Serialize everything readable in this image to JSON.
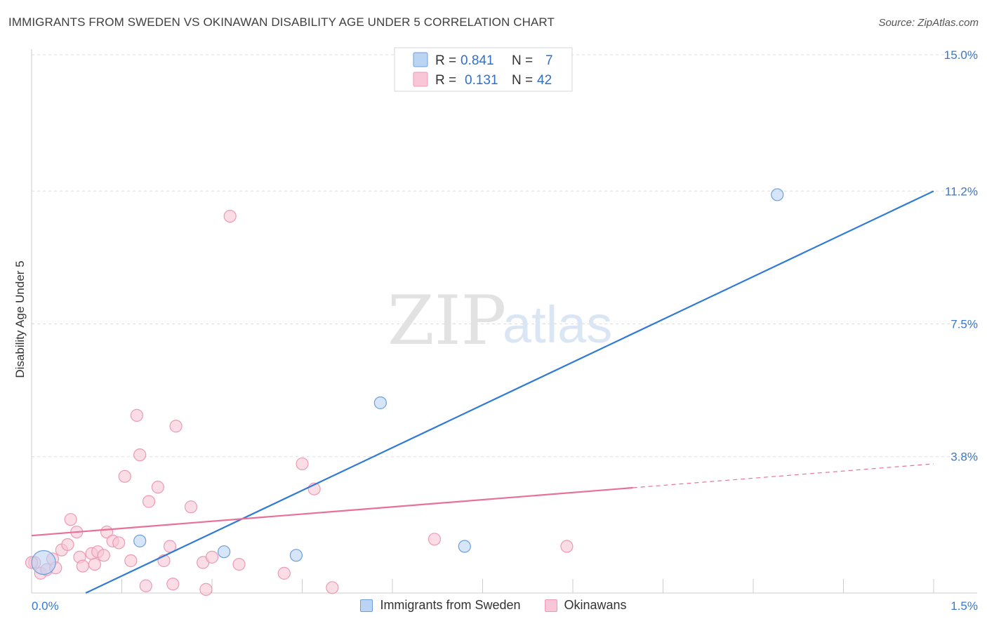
{
  "title": "IMMIGRANTS FROM SWEDEN VS OKINAWAN DISABILITY AGE UNDER 5 CORRELATION CHART",
  "source": "Source: ZipAtlas.com",
  "watermark": {
    "zip": "ZIP",
    "atlas": "atlas"
  },
  "colors": {
    "blue": "#2f7ad6",
    "blue_fill": "#bcd4f3",
    "blue_stroke": "#6c9fdc",
    "pink": "#e8709a",
    "pink_fill": "#f8c6d6",
    "pink_stroke": "#ec9ab6",
    "grid": "#dddddd",
    "tick_label": "#3a78c9"
  },
  "legend": {
    "rows": [
      {
        "r_label": "R =",
        "r_value": "0.841",
        "n_label": "N =",
        "n_value": "7",
        "series": "Immigrants from Sweden"
      },
      {
        "r_label": "R =",
        "r_value": "0.131",
        "n_label": "N =",
        "n_value": "42",
        "series": "Okinawans"
      }
    ]
  },
  "bottom_legend": {
    "sweden": "Immigrants from Sweden",
    "okinawans": "Okinawans"
  },
  "chart_data": {
    "type": "scatter",
    "title": "IMMIGRANTS FROM SWEDEN VS OKINAWAN DISABILITY AGE UNDER 5 CORRELATION CHART",
    "xlabel": "",
    "ylabel": "Disability Age Under 5",
    "xlim": [
      0.0,
      1.5
    ],
    "ylim": [
      0.0,
      15.0
    ],
    "x_tick_labels": [
      "0.0%",
      "1.5%"
    ],
    "y_ticks": [
      3.8,
      7.5,
      11.2,
      15.0
    ],
    "y_tick_labels": [
      "3.8%",
      "7.5%",
      "11.2%",
      "15.0%"
    ],
    "series": [
      {
        "name": "Immigrants from Sweden",
        "color": "#2f7ad6",
        "points": [
          {
            "x": 0.02,
            "y": 0.85,
            "big": true
          },
          {
            "x": 0.18,
            "y": 1.45
          },
          {
            "x": 0.32,
            "y": 1.15
          },
          {
            "x": 0.44,
            "y": 1.05
          },
          {
            "x": 0.58,
            "y": 5.3
          },
          {
            "x": 0.72,
            "y": 1.3
          },
          {
            "x": 1.24,
            "y": 11.1
          }
        ],
        "trend": {
          "x0": 0.09,
          "y0": 0.0,
          "x1": 1.5,
          "y1": 11.2,
          "dashed_from": null
        }
      },
      {
        "name": "Okinawans",
        "color": "#e8709a",
        "points": [
          {
            "x": 0.005,
            "y": 0.85
          },
          {
            "x": 0.015,
            "y": 0.55
          },
          {
            "x": 0.025,
            "y": 0.65
          },
          {
            "x": 0.035,
            "y": 0.95
          },
          {
            "x": 0.04,
            "y": 0.7
          },
          {
            "x": 0.05,
            "y": 1.2
          },
          {
            "x": 0.06,
            "y": 1.35
          },
          {
            "x": 0.065,
            "y": 2.05
          },
          {
            "x": 0.075,
            "y": 1.7
          },
          {
            "x": 0.08,
            "y": 1.0
          },
          {
            "x": 0.085,
            "y": 0.75
          },
          {
            "x": 0.1,
            "y": 1.1
          },
          {
            "x": 0.105,
            "y": 0.8
          },
          {
            "x": 0.11,
            "y": 1.15
          },
          {
            "x": 0.12,
            "y": 1.05
          },
          {
            "x": 0.125,
            "y": 1.7
          },
          {
            "x": 0.135,
            "y": 1.45
          },
          {
            "x": 0.145,
            "y": 1.4
          },
          {
            "x": 0.155,
            "y": 3.25
          },
          {
            "x": 0.165,
            "y": 0.9
          },
          {
            "x": 0.175,
            "y": 4.95
          },
          {
            "x": 0.18,
            "y": 3.85
          },
          {
            "x": 0.19,
            "y": 0.2
          },
          {
            "x": 0.195,
            "y": 2.55
          },
          {
            "x": 0.21,
            "y": 2.95
          },
          {
            "x": 0.22,
            "y": 0.9
          },
          {
            "x": 0.23,
            "y": 1.3
          },
          {
            "x": 0.235,
            "y": 0.25
          },
          {
            "x": 0.24,
            "y": 4.65
          },
          {
            "x": 0.265,
            "y": 2.4
          },
          {
            "x": 0.285,
            "y": 0.85
          },
          {
            "x": 0.29,
            "y": 0.1
          },
          {
            "x": 0.3,
            "y": 1.0
          },
          {
            "x": 0.33,
            "y": 10.5
          },
          {
            "x": 0.345,
            "y": 0.8
          },
          {
            "x": 0.42,
            "y": 0.55
          },
          {
            "x": 0.45,
            "y": 3.6
          },
          {
            "x": 0.47,
            "y": 2.9
          },
          {
            "x": 0.5,
            "y": 0.15
          },
          {
            "x": 0.67,
            "y": 1.5
          },
          {
            "x": 0.89,
            "y": 1.3
          },
          {
            "x": 0.0,
            "y": 0.85
          }
        ],
        "trend": {
          "x0": 0.0,
          "y0": 1.6,
          "x1": 1.5,
          "y1": 3.6,
          "dashed_from": 1.0
        }
      }
    ]
  }
}
